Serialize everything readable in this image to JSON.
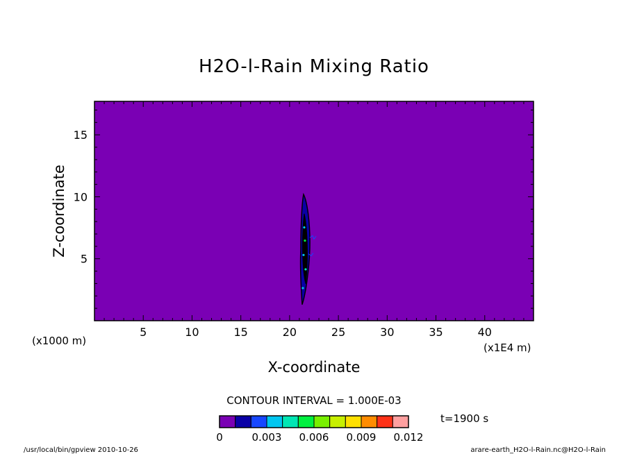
{
  "chart_data": {
    "type": "heatmap",
    "title": "H2O-l-Rain Mixing Ratio",
    "xlabel": "X-coordinate",
    "ylabel": "Z-coordinate",
    "x_unit_left": "(x1000 m)",
    "x_unit_right": "(x1E4 m)",
    "xlim": [
      0,
      45
    ],
    "ylim": [
      0,
      17.7
    ],
    "x_ticks": [
      5,
      10,
      15,
      20,
      25,
      30,
      35,
      40
    ],
    "y_ticks": [
      5,
      10,
      15
    ],
    "contour_interval_label": "CONTOUR INTERVAL = 1.000E-03",
    "time_label": "t=1900 s",
    "colorbar": {
      "levels": [
        0,
        0.001,
        0.002,
        0.003,
        0.004,
        0.005,
        0.006,
        0.007,
        0.008,
        0.009,
        0.01,
        0.011,
        0.012
      ],
      "colors": [
        "#7a00b4",
        "#0a00a6",
        "#1747ff",
        "#00c6f0",
        "#00e6b4",
        "#00f040",
        "#78f000",
        "#c8f000",
        "#ffe000",
        "#ff8c00",
        "#ff3218",
        "#ffa0a0"
      ],
      "tick_labels": [
        "0",
        "0.003",
        "0.006",
        "0.009",
        "0.012"
      ],
      "tick_values": [
        0,
        0.003,
        0.006,
        0.009,
        0.012
      ]
    },
    "background_color": "#7a00b4",
    "feature": {
      "description_color": "#000000",
      "x_center": 21.5,
      "z_bottom": 1.3,
      "z_top": 10.2,
      "max_value_approx": 0.002
    },
    "grid": false
  },
  "footer": {
    "left": "/usr/local/bin/gpview  2010-10-26",
    "right": "arare-earth_H2O-l-Rain.nc@H2O-l-Rain"
  }
}
